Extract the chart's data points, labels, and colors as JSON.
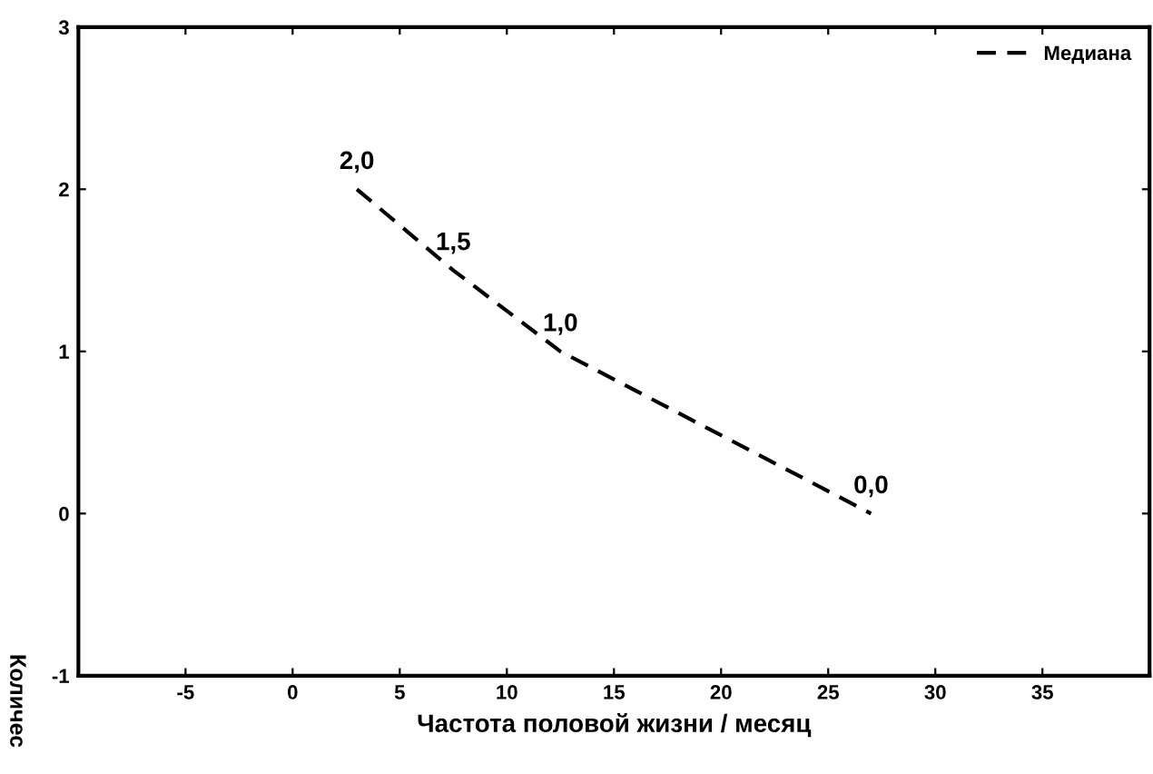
{
  "chart_data": {
    "type": "line",
    "xlabel": "Частота половой жизни / месяц",
    "ylabel": "Количес",
    "x": [
      3,
      7.5,
      12.5,
      27
    ],
    "series": [
      {
        "name": "Медиана",
        "color": "#000000",
        "values": [
          2.0,
          1.5,
          1.0,
          0.0
        ]
      }
    ],
    "value_labels": [
      "2,0",
      "1,5",
      "1,0",
      "0,0"
    ],
    "xlim": [
      -10,
      40
    ],
    "xticks": [
      -5,
      0,
      5,
      10,
      15,
      20,
      25,
      30,
      35
    ],
    "ylim": [
      -1,
      3
    ],
    "yticks": [
      -1,
      0,
      1,
      2,
      3
    ],
    "line_style": "dashed",
    "marker": "none",
    "grid": false,
    "legend": "top right"
  }
}
